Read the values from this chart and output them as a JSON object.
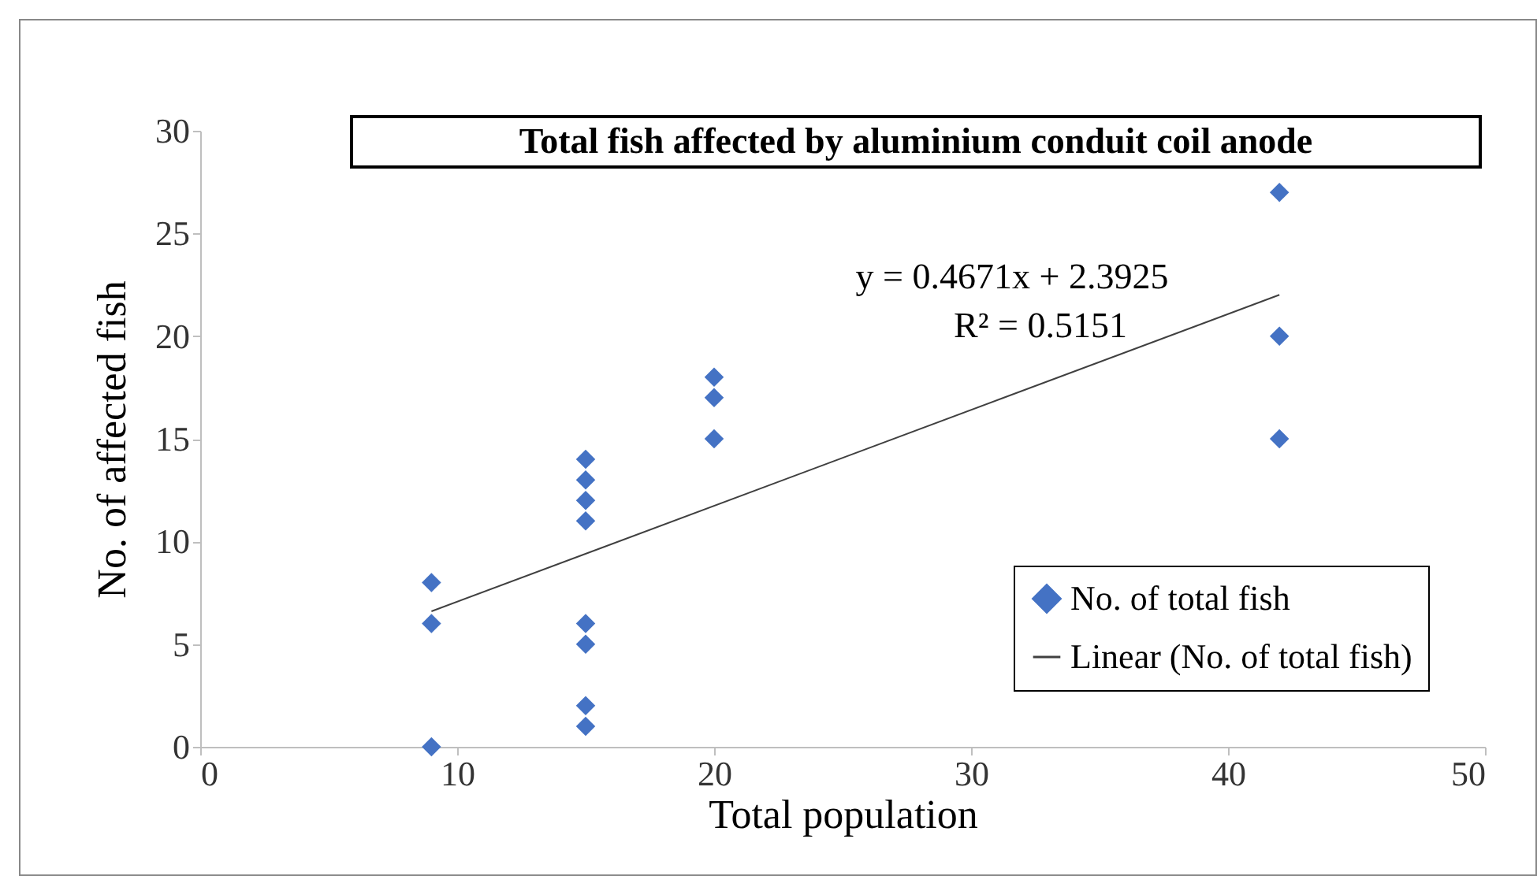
{
  "chart_data": {
    "type": "scatter",
    "title": "Total fish affected by aluminium conduit coil anode",
    "xlabel": "Total population",
    "ylabel": "No. of affected fish",
    "series": [
      {
        "name": "No. of total fish",
        "color": "#4472c4",
        "marker": "diamond",
        "x": [
          9,
          9,
          9,
          15,
          15,
          15,
          15,
          15,
          15,
          15,
          15,
          20,
          20,
          20,
          42,
          42,
          42
        ],
        "values": [
          8,
          6,
          0,
          14,
          13,
          12,
          11,
          6,
          5,
          2,
          1,
          18,
          17,
          15,
          27,
          20,
          15
        ]
      },
      {
        "name": "Linear (No. of total fish)",
        "type": "line",
        "marker": "none",
        "color": "#404040",
        "x": [
          9,
          42
        ],
        "values": [
          6.6,
          22.01
        ]
      }
    ],
    "annotations": [
      "y = 0.4671x + 2.3925",
      "R² = 0.5151"
    ],
    "xlim": [
      0,
      50
    ],
    "xticks": [
      0,
      10,
      20,
      30,
      40,
      50
    ],
    "ylim": [
      0,
      30
    ],
    "yticks": [
      0,
      5,
      10,
      15,
      20,
      25,
      30
    ],
    "grid": false,
    "legend": "bottom right",
    "line_style": "solid"
  }
}
